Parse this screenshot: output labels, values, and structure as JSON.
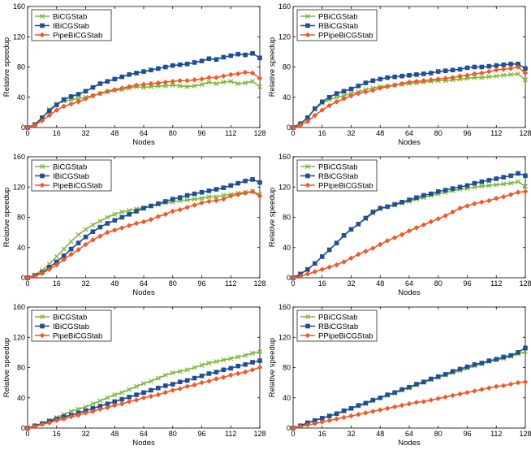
{
  "colors": {
    "green": "#7db83a",
    "blue": "#1f4f96",
    "red": "#f05a28"
  },
  "chart_data": [
    {
      "type": "line",
      "xlabel": "Nodes",
      "ylabel": "Relative speedup",
      "xlim": [
        0,
        128
      ],
      "ylim": [
        0,
        160
      ],
      "xticks": [
        0,
        16,
        32,
        48,
        64,
        80,
        96,
        112,
        128
      ],
      "yticks": [
        0,
        40,
        80,
        120,
        160
      ],
      "x": [
        0,
        4,
        8,
        12,
        16,
        20,
        24,
        28,
        32,
        36,
        40,
        44,
        48,
        52,
        56,
        60,
        64,
        68,
        72,
        76,
        80,
        84,
        88,
        92,
        96,
        100,
        104,
        108,
        112,
        116,
        120,
        124,
        128
      ],
      "series": [
        {
          "name": "BiCGStab",
          "color": "green",
          "marker": "x",
          "values": [
            0,
            4,
            12,
            24,
            31,
            35,
            37,
            38,
            40,
            42,
            45,
            47,
            49,
            50,
            52,
            54,
            53,
            54,
            55,
            55,
            56,
            55,
            54,
            55,
            57,
            60,
            58,
            60,
            61,
            58,
            59,
            61,
            54
          ]
        },
        {
          "name": "IBiCGStab",
          "color": "blue",
          "marker": "square",
          "values": [
            0,
            4,
            13,
            22,
            30,
            37,
            41,
            44,
            48,
            53,
            58,
            61,
            64,
            67,
            70,
            72,
            74,
            76,
            78,
            80,
            82,
            83,
            84,
            86,
            88,
            91,
            90,
            93,
            95,
            97,
            96,
            98,
            92
          ]
        },
        {
          "name": "PipeBiCGStab",
          "color": "red",
          "marker": "diamond",
          "values": [
            0,
            3,
            9,
            16,
            23,
            28,
            31,
            34,
            38,
            42,
            45,
            48,
            50,
            52,
            54,
            56,
            57,
            58,
            59,
            60,
            61,
            62,
            62,
            63,
            64,
            66,
            66,
            68,
            70,
            71,
            73,
            72,
            65
          ]
        }
      ]
    },
    {
      "type": "line",
      "xlabel": "Nodes",
      "ylabel": "Relative speedup",
      "xlim": [
        0,
        128
      ],
      "ylim": [
        0,
        160
      ],
      "xticks": [
        0,
        16,
        32,
        48,
        64,
        80,
        96,
        112,
        128
      ],
      "yticks": [
        0,
        40,
        80,
        120,
        160
      ],
      "x": [
        0,
        4,
        8,
        12,
        16,
        20,
        24,
        28,
        32,
        36,
        40,
        44,
        48,
        52,
        56,
        60,
        64,
        68,
        72,
        76,
        80,
        84,
        88,
        92,
        96,
        100,
        104,
        108,
        112,
        116,
        120,
        124,
        128
      ],
      "series": [
        {
          "name": "PBiCGStab",
          "color": "green",
          "marker": "x",
          "values": [
            0,
            5,
            13,
            24,
            32,
            37,
            40,
            42,
            45,
            47,
            50,
            52,
            54,
            55,
            56,
            57,
            58,
            59,
            60,
            61,
            62,
            62,
            63,
            64,
            65,
            66,
            66,
            67,
            68,
            69,
            70,
            71,
            63
          ]
        },
        {
          "name": "RBiCGStab",
          "color": "blue",
          "marker": "square",
          "values": [
            0,
            5,
            13,
            25,
            34,
            40,
            45,
            48,
            51,
            55,
            59,
            62,
            64,
            66,
            67,
            68,
            69,
            70,
            71,
            72,
            74,
            75,
            76,
            77,
            79,
            80,
            80,
            81,
            82,
            83,
            84,
            84,
            78
          ]
        },
        {
          "name": "PPipeBiCGStab",
          "color": "red",
          "marker": "diamond",
          "values": [
            0,
            3,
            8,
            16,
            23,
            29,
            34,
            38,
            42,
            45,
            47,
            49,
            52,
            54,
            56,
            58,
            60,
            61,
            62,
            63,
            64,
            65,
            66,
            68,
            69,
            71,
            72,
            74,
            76,
            77,
            78,
            80,
            72
          ]
        }
      ]
    },
    {
      "type": "line",
      "xlabel": "Nodes",
      "ylabel": "Relative speedup",
      "xlim": [
        0,
        128
      ],
      "ylim": [
        0,
        160
      ],
      "xticks": [
        0,
        16,
        32,
        48,
        64,
        80,
        96,
        112,
        128
      ],
      "yticks": [
        0,
        40,
        80,
        120,
        160
      ],
      "x": [
        0,
        4,
        8,
        12,
        16,
        20,
        24,
        28,
        32,
        36,
        40,
        44,
        48,
        52,
        56,
        60,
        64,
        68,
        72,
        76,
        80,
        84,
        88,
        92,
        96,
        100,
        104,
        108,
        112,
        116,
        120,
        124,
        128
      ],
      "series": [
        {
          "name": "BiCGStab",
          "color": "green",
          "marker": "x",
          "values": [
            0,
            4,
            10,
            18,
            28,
            38,
            48,
            57,
            64,
            70,
            75,
            80,
            84,
            87,
            89,
            91,
            93,
            95,
            97,
            99,
            100,
            102,
            103,
            104,
            105,
            107,
            107,
            109,
            110,
            112,
            113,
            114,
            110
          ]
        },
        {
          "name": "IBiCGStab",
          "color": "blue",
          "marker": "square",
          "values": [
            0,
            3,
            7,
            14,
            21,
            29,
            38,
            46,
            54,
            61,
            67,
            72,
            76,
            80,
            84,
            88,
            92,
            95,
            98,
            101,
            104,
            106,
            109,
            111,
            113,
            115,
            117,
            119,
            122,
            125,
            128,
            130,
            126
          ]
        },
        {
          "name": "PipeBiCGStab",
          "color": "red",
          "marker": "diamond",
          "values": [
            0,
            2,
            6,
            11,
            17,
            24,
            31,
            37,
            44,
            50,
            55,
            60,
            63,
            66,
            69,
            72,
            74,
            77,
            81,
            84,
            88,
            90,
            93,
            96,
            99,
            101,
            102,
            104,
            108,
            110,
            112,
            114,
            108
          ]
        }
      ]
    },
    {
      "type": "line",
      "xlabel": "Nodes",
      "ylabel": "Relative speedup",
      "xlim": [
        0,
        128
      ],
      "ylim": [
        0,
        160
      ],
      "xticks": [
        0,
        16,
        32,
        48,
        64,
        80,
        96,
        112,
        128
      ],
      "yticks": [
        0,
        40,
        80,
        120,
        160
      ],
      "x": [
        0,
        4,
        8,
        12,
        16,
        20,
        24,
        28,
        32,
        36,
        40,
        44,
        48,
        52,
        56,
        60,
        64,
        68,
        72,
        76,
        80,
        84,
        88,
        92,
        96,
        100,
        104,
        108,
        112,
        116,
        120,
        124,
        128
      ],
      "series": [
        {
          "name": "PBiCGStab",
          "color": "green",
          "marker": "x",
          "values": [
            0,
            5,
            11,
            19,
            28,
            37,
            46,
            56,
            64,
            71,
            78,
            85,
            91,
            94,
            96,
            99,
            101,
            104,
            106,
            109,
            111,
            113,
            115,
            117,
            118,
            120,
            121,
            122,
            123,
            124,
            125,
            127,
            121
          ]
        },
        {
          "name": "RBiCGStab",
          "color": "blue",
          "marker": "square",
          "values": [
            0,
            5,
            11,
            19,
            28,
            37,
            46,
            56,
            64,
            71,
            79,
            87,
            92,
            94,
            97,
            100,
            103,
            106,
            109,
            111,
            114,
            116,
            118,
            120,
            122,
            125,
            127,
            129,
            131,
            133,
            135,
            138,
            135
          ]
        },
        {
          "name": "PPipeBiCGStab",
          "color": "red",
          "marker": "diamond",
          "values": [
            0,
            2,
            5,
            8,
            11,
            14,
            17,
            21,
            26,
            31,
            35,
            39,
            44,
            49,
            53,
            57,
            62,
            66,
            70,
            74,
            78,
            82,
            87,
            92,
            95,
            98,
            100,
            102,
            105,
            107,
            110,
            113,
            114
          ]
        }
      ]
    },
    {
      "type": "line",
      "xlabel": "Nodes",
      "ylabel": "Relative speedup",
      "xlim": [
        0,
        128
      ],
      "ylim": [
        0,
        160
      ],
      "xticks": [
        0,
        16,
        32,
        48,
        64,
        80,
        96,
        112,
        128
      ],
      "yticks": [
        0,
        40,
        80,
        120,
        160
      ],
      "x": [
        0,
        4,
        8,
        12,
        16,
        20,
        24,
        28,
        32,
        36,
        40,
        44,
        48,
        52,
        56,
        60,
        64,
        68,
        72,
        76,
        80,
        84,
        88,
        92,
        96,
        100,
        104,
        108,
        112,
        116,
        120,
        124,
        128
      ],
      "series": [
        {
          "name": "BiCGStab",
          "color": "green",
          "marker": "x",
          "values": [
            0,
            3,
            6,
            10,
            14,
            18,
            22,
            25,
            28,
            32,
            36,
            40,
            44,
            47,
            51,
            55,
            59,
            62,
            66,
            70,
            73,
            75,
            77,
            80,
            83,
            86,
            88,
            90,
            92,
            94,
            96,
            99,
            101
          ]
        },
        {
          "name": "IBiCGStab",
          "color": "blue",
          "marker": "square",
          "values": [
            0,
            3,
            6,
            9,
            12,
            15,
            17,
            20,
            23,
            26,
            29,
            32,
            35,
            38,
            41,
            44,
            47,
            50,
            53,
            56,
            58,
            61,
            63,
            66,
            69,
            72,
            74,
            77,
            79,
            82,
            84,
            87,
            89
          ]
        },
        {
          "name": "PipeBiCGStab",
          "color": "red",
          "marker": "diamond",
          "values": [
            0,
            2,
            5,
            7,
            10,
            12,
            15,
            17,
            20,
            22,
            25,
            27,
            30,
            32,
            35,
            37,
            40,
            42,
            44,
            47,
            50,
            52,
            55,
            57,
            60,
            62,
            65,
            67,
            70,
            72,
            74,
            77,
            80
          ]
        }
      ]
    },
    {
      "type": "line",
      "xlabel": "Nodes",
      "ylabel": "Relative speedup",
      "xlim": [
        0,
        128
      ],
      "ylim": [
        0,
        160
      ],
      "xticks": [
        0,
        16,
        32,
        48,
        64,
        80,
        96,
        112,
        128
      ],
      "yticks": [
        0,
        40,
        80,
        120,
        160
      ],
      "x": [
        0,
        4,
        8,
        12,
        16,
        20,
        24,
        28,
        32,
        36,
        40,
        44,
        48,
        52,
        56,
        60,
        64,
        68,
        72,
        76,
        80,
        84,
        88,
        92,
        96,
        100,
        104,
        108,
        112,
        116,
        120,
        124,
        128
      ],
      "series": [
        {
          "name": "PBiCGStab",
          "color": "green",
          "marker": "x",
          "values": [
            0,
            3,
            7,
            10,
            13,
            16,
            19,
            22,
            26,
            29,
            32,
            36,
            40,
            43,
            46,
            50,
            53,
            57,
            60,
            64,
            67,
            70,
            73,
            76,
            79,
            82,
            85,
            88,
            90,
            92,
            95,
            98,
            101
          ]
        },
        {
          "name": "RBiCGStab",
          "color": "blue",
          "marker": "square",
          "values": [
            0,
            3,
            7,
            10,
            13,
            16,
            19,
            23,
            26,
            30,
            33,
            37,
            40,
            44,
            47,
            51,
            54,
            58,
            61,
            65,
            68,
            71,
            75,
            78,
            81,
            84,
            86,
            89,
            91,
            94,
            96,
            100,
            106
          ]
        },
        {
          "name": "PPipeBiCGStab",
          "color": "red",
          "marker": "diamond",
          "values": [
            0,
            2,
            4,
            6,
            8,
            10,
            12,
            14,
            16,
            18,
            20,
            22,
            24,
            26,
            28,
            30,
            32,
            34,
            35,
            37,
            39,
            41,
            43,
            45,
            47,
            49,
            51,
            53,
            55,
            56,
            58,
            60,
            61
          ]
        }
      ]
    }
  ]
}
